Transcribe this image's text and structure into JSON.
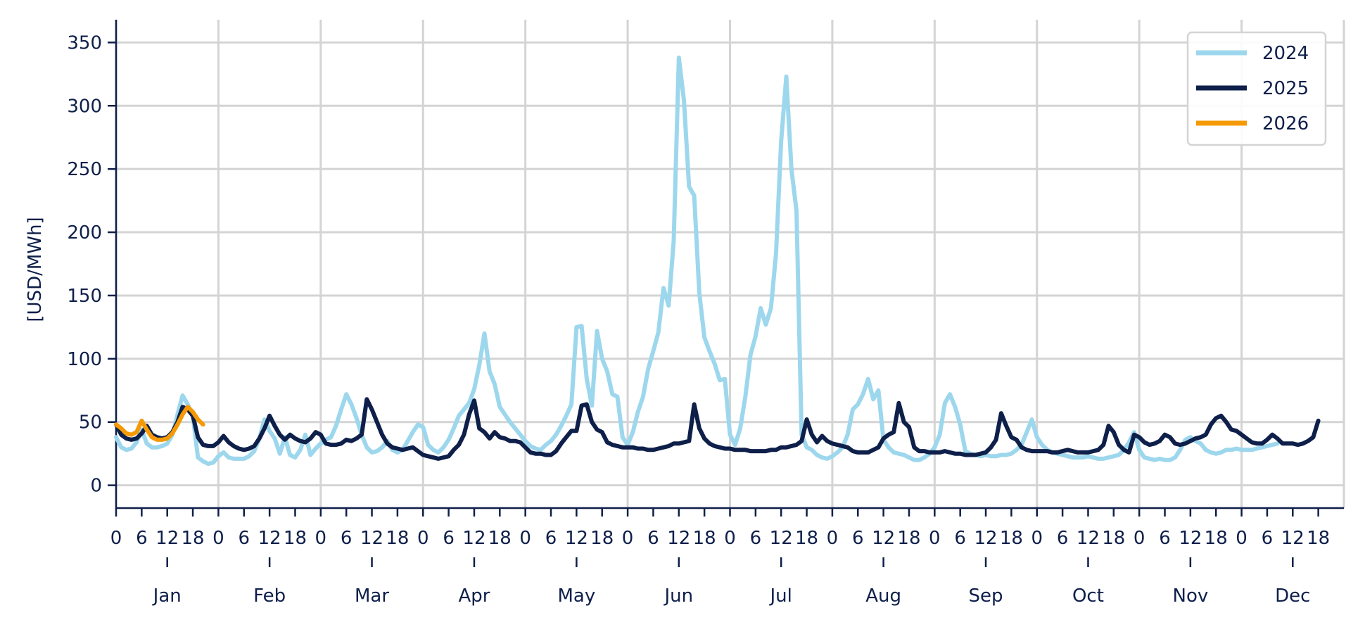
{
  "chart_data": {
    "type": "line",
    "title": "",
    "ylabel": "[USD/MWh]",
    "xlabel": "",
    "ylim": [
      -18,
      368
    ],
    "yticks": [
      0,
      50,
      100,
      150,
      200,
      250,
      300,
      350
    ],
    "grid": true,
    "legend_position": "top-right",
    "months": [
      "Jan",
      "Feb",
      "Mar",
      "Apr",
      "May",
      "Jun",
      "Jul",
      "Aug",
      "Sep",
      "Oct",
      "Nov",
      "Dec"
    ],
    "hours": [
      0,
      6,
      12,
      18
    ],
    "hour_tick_labels": [
      "0",
      "6",
      "12",
      "18"
    ],
    "series": [
      {
        "name": "2024",
        "color": "#9dd7ed",
        "values": [
          [
            38,
            30,
            28,
            29,
            34,
            44,
            33,
            30,
            30,
            31,
            33,
            40,
            56,
            71,
            64,
            55,
            22,
            19,
            17,
            18,
            23,
            26,
            22,
            21,
            21,
            21,
            23,
            27,
            37,
            52
          ],
          [
            43,
            37,
            25,
            38,
            24,
            22,
            28,
            40,
            24,
            29,
            33,
            36,
            38,
            47,
            60,
            72,
            64,
            53,
            40,
            30,
            26,
            27,
            30,
            35,
            28,
            26,
            28,
            35,
            42,
            48
          ],
          [
            46,
            32,
            28,
            26,
            30,
            36,
            45,
            55,
            60,
            65,
            76,
            95,
            120,
            90,
            80,
            62,
            56,
            50,
            45,
            40,
            35,
            31,
            29,
            28,
            32,
            35,
            40,
            47,
            55,
            64
          ],
          [
            125,
            126,
            84,
            63,
            122,
            100,
            90,
            72,
            70,
            38,
            32,
            42,
            58,
            70,
            92,
            106,
            121,
            156,
            142,
            193,
            338,
            304,
            236,
            229,
            152,
            117,
            106,
            96,
            83,
            84
          ],
          [
            40,
            32,
            45,
            70,
            103,
            118,
            140,
            127,
            140,
            183,
            272,
            323,
            250,
            217,
            40,
            30,
            28,
            24,
            22,
            21,
            23,
            26,
            30,
            40,
            60,
            64,
            72,
            84,
            68,
            75
          ],
          [
            36,
            30,
            26,
            25,
            24,
            22,
            20,
            20,
            22,
            25,
            30,
            40,
            65,
            72,
            62,
            48,
            27,
            25,
            24,
            23,
            24,
            23,
            23,
            24,
            24,
            25,
            28,
            32,
            42,
            52
          ],
          [
            38,
            32,
            28,
            26,
            25,
            24,
            23,
            22,
            22,
            22,
            23,
            22,
            21,
            21,
            22,
            23,
            24,
            28,
            34,
            42,
            28,
            22,
            21,
            20,
            21,
            20,
            20,
            22,
            28,
            36
          ],
          [
            38,
            35,
            33,
            28,
            26,
            25,
            26,
            28,
            28,
            29,
            28,
            28,
            28,
            29,
            30,
            31,
            32,
            33
          ]
        ]
      },
      {
        "name": "2025",
        "color": "#0e1f4a",
        "values": [
          [
            48,
            40,
            37,
            36,
            37,
            41,
            47,
            40,
            38,
            37,
            38,
            42,
            50,
            62,
            60,
            55,
            38,
            32,
            31,
            31,
            34,
            39,
            34,
            31,
            29,
            28,
            29,
            31,
            37,
            45
          ],
          [
            55,
            47,
            40,
            36,
            40,
            37,
            35,
            34,
            37,
            42,
            40,
            33,
            32,
            32,
            33,
            36,
            35,
            37,
            40,
            68,
            60,
            50,
            40,
            33,
            30,
            29,
            28,
            29,
            30,
            27
          ],
          [
            24,
            23,
            22,
            21,
            22,
            23,
            28,
            32,
            40,
            56,
            67,
            45,
            42,
            37,
            42,
            38,
            37,
            35,
            35,
            34,
            30,
            26,
            25,
            25,
            24,
            24,
            27,
            33,
            38,
            43
          ],
          [
            43,
            63,
            64,
            50,
            44,
            42,
            34,
            32,
            31,
            30,
            30,
            30,
            29,
            29,
            28,
            28,
            29,
            30,
            31,
            33,
            33,
            34,
            35,
            64,
            45,
            37,
            33,
            31,
            30,
            29
          ],
          [
            29,
            28,
            28,
            28,
            27,
            27,
            27,
            27,
            28,
            28,
            30,
            30,
            31,
            32,
            35,
            52,
            40,
            34,
            39,
            35,
            33,
            32,
            31,
            30,
            27,
            26,
            26,
            26,
            28,
            30
          ],
          [
            37,
            40,
            42,
            65,
            50,
            46,
            30,
            27,
            27,
            26,
            26,
            26,
            27,
            26,
            25,
            25,
            24,
            24,
            24,
            25,
            26,
            30,
            36,
            57,
            47,
            38,
            36,
            30,
            28,
            27
          ],
          [
            27,
            27,
            27,
            26,
            26,
            27,
            28,
            27,
            26,
            26,
            26,
            27,
            28,
            32,
            47,
            42,
            32,
            28,
            26,
            40,
            38,
            34,
            32,
            33,
            35,
            40,
            38,
            33,
            32,
            33
          ],
          [
            35,
            37,
            38,
            40,
            48,
            53,
            55,
            50,
            44,
            43,
            40,
            37,
            34,
            33,
            33,
            36,
            40,
            37,
            33,
            33,
            33,
            32,
            33,
            35,
            38,
            51
          ]
        ]
      },
      {
        "name": "2026",
        "color": "#f59a05",
        "values": [
          [
            48,
            45,
            41,
            40,
            42,
            51,
            44,
            38,
            36,
            36,
            37,
            41,
            48,
            56,
            62,
            58,
            52,
            48
          ]
        ]
      }
    ]
  }
}
